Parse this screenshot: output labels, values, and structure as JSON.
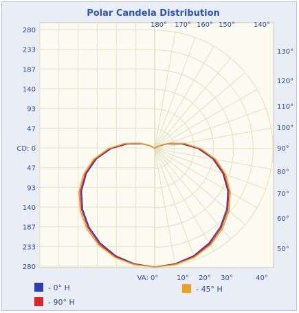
{
  "chart_data": {
    "type": "polar",
    "title": "Polar Candela Distribution",
    "y_ticks": [
      "280",
      "233",
      "187",
      "140",
      "93",
      "47",
      "CD: 0",
      "47",
      "93",
      "140",
      "187",
      "233",
      "280"
    ],
    "top_angle_labels": [
      "180°",
      "170°",
      "160°",
      "150°",
      "140°"
    ],
    "right_angle_labels": [
      "130°",
      "120°",
      "110°",
      "100°",
      "90°",
      "80°",
      "70°",
      "60°",
      "50°"
    ],
    "bottom_angle_labels": [
      "VA: 0°",
      "10°",
      "20°",
      "30°",
      "40°"
    ],
    "rmax": 280,
    "angles_deg": [
      0,
      10,
      20,
      30,
      40,
      50,
      60,
      70,
      80,
      90,
      100,
      110,
      120,
      130,
      140,
      150,
      160,
      170,
      180
    ],
    "series": [
      {
        "name": "- 0° H",
        "color": "#2b3fb5",
        "values": [
          280,
          277,
          270,
          258,
          242,
          223,
          200,
          172,
          140,
          103,
          65,
          34,
          14,
          5,
          2,
          1,
          1,
          1,
          1
        ]
      },
      {
        "name": "- 90° H",
        "color": "#e02424",
        "values": [
          280,
          278,
          272,
          261,
          245,
          226,
          203,
          175,
          143,
          106,
          68,
          36,
          15,
          6,
          2,
          1,
          1,
          1,
          1
        ]
      },
      {
        "name": "- 45° H",
        "color": "#f0a020",
        "values": [
          280,
          279,
          274,
          264,
          249,
          230,
          207,
          179,
          147,
          109,
          71,
          38,
          16,
          6,
          3,
          1,
          1,
          1,
          1
        ]
      }
    ]
  }
}
